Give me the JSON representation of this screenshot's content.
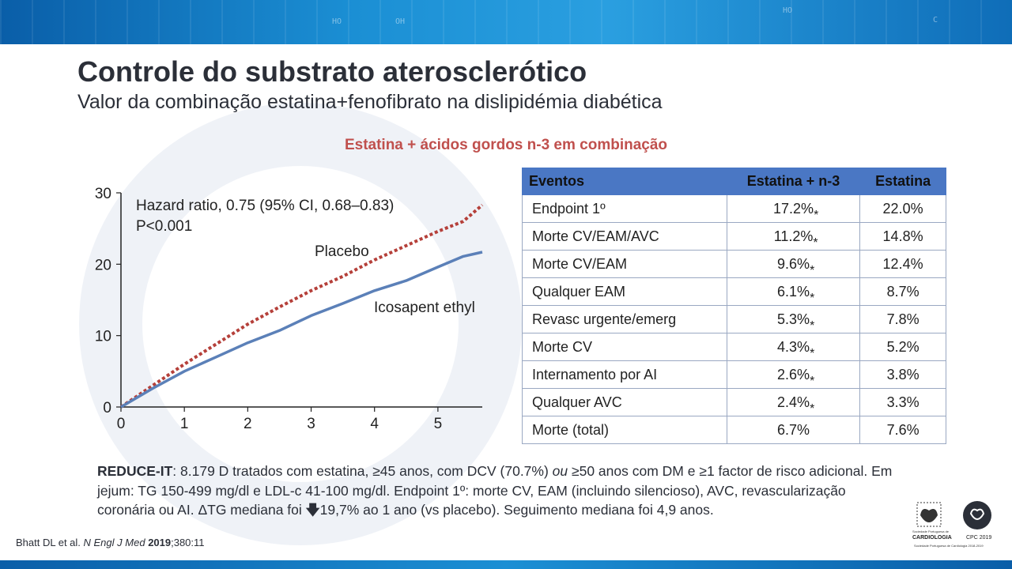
{
  "slide": {
    "title": "Controle do substrato aterosclerótico",
    "subtitle": "Valor da combinação estatina+fenofibrato na dislipidémia diabética",
    "section_title": "Estatina + ácidos gordos n-3 em combinação"
  },
  "chart_data": {
    "type": "line",
    "annotation_lines": [
      "Hazard ratio, 0.75 (95% CI, 0.68–0.83)",
      "P<0.001"
    ],
    "xlim": [
      0,
      5.7
    ],
    "ylim": [
      0,
      30
    ],
    "x_ticks": [
      0,
      1,
      2,
      3,
      4,
      5
    ],
    "y_ticks": [
      0,
      10,
      20,
      30
    ],
    "series": [
      {
        "name": "Placebo",
        "color": "#b5403a",
        "style": "dotted",
        "x": [
          0,
          0.5,
          1,
          1.5,
          2,
          2.5,
          3,
          3.5,
          4,
          4.5,
          5,
          5.4,
          5.7
        ],
        "y": [
          0,
          3.0,
          6.0,
          8.8,
          11.6,
          14.0,
          16.3,
          18.3,
          20.6,
          22.6,
          24.6,
          26.0,
          28.3
        ]
      },
      {
        "name": "Icosapent ethyl",
        "color": "#5b80b8",
        "style": "solid",
        "x": [
          0,
          0.5,
          1,
          1.5,
          2,
          2.5,
          3,
          3.5,
          4,
          4.5,
          5,
          5.4,
          5.7
        ],
        "y": [
          0,
          2.6,
          5.0,
          7.0,
          9.0,
          10.7,
          12.8,
          14.5,
          16.3,
          17.7,
          19.6,
          21.1,
          21.7
        ]
      }
    ]
  },
  "table": {
    "headers": [
      "Eventos",
      "Estatina + n-3",
      "Estatina"
    ],
    "rows": [
      {
        "event": "Endpoint 1º",
        "combo": "17.2%",
        "statin": "22.0%",
        "star": "*"
      },
      {
        "event": "Morte CV/EAM/AVC",
        "combo": "11.2%",
        "statin": "14.8%",
        "star": "*"
      },
      {
        "event": "Morte CV/EAM",
        "combo": "9.6%",
        "statin": "12.4%",
        "star": "*"
      },
      {
        "event": "Qualquer EAM",
        "combo": "6.1%",
        "statin": "8.7%",
        "star": "*"
      },
      {
        "event": "Revasc urgente/emerg",
        "combo": "5.3%",
        "statin": "7.8%",
        "star": "*"
      },
      {
        "event": "Morte CV",
        "combo": "4.3%",
        "statin": "5.2%",
        "star": "*"
      },
      {
        "event": "Internamento por AI",
        "combo": "2.6%",
        "statin": "3.8%",
        "star": "*"
      },
      {
        "event": "Qualquer AVC",
        "combo": "2.4%",
        "statin": "3.3%",
        "star": "*"
      },
      {
        "event": "Morte (total)",
        "combo": "6.7%",
        "statin": "7.6%",
        "star": ""
      }
    ]
  },
  "footnote": {
    "study": "REDUCE-IT",
    "p1": ": 8.179 D tratados com estatina, ≥45 anos, com DCV (70.7%) ",
    "ou": "ou",
    "p2": " ≥50 anos com DM e ≥1 factor de risco adicional. Em jejum: TG 150-499 mg/dl e LDL-c 41-100 mg/dl. Endpoint 1º: morte CV, EAM (incluindo silencioso), AVC, revascularização coronária ou AI. ΔTG mediana foi ",
    "arrow": "🡇",
    "p3": "19,7% ao 1 ano (vs placebo). Seguimento mediana foi 4,9 anos."
  },
  "reference": {
    "authors": "Bhatt DL et al. ",
    "journal": "N Engl J Med",
    "space": " ",
    "year": "2019",
    "rest": ";380:11"
  },
  "logos": {
    "spc_name": "CARDIOLOGIA",
    "spc_small": "Sociedade Portuguesa de",
    "cpc_label": "CPC 2019",
    "spc_footer": "Sociedade Portuguesa de Cardiologia 2018-2019"
  }
}
